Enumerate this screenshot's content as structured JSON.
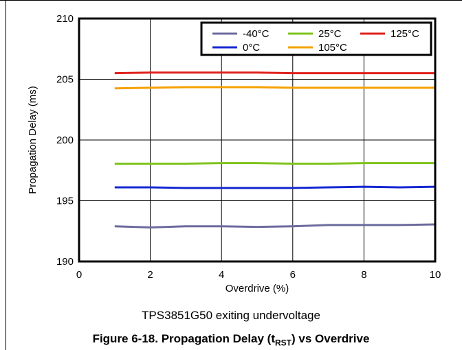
{
  "chart_data": {
    "type": "line",
    "xlabel": "Overdrive (%)",
    "ylabel": "Propagation Delay (ms)",
    "xlim": [
      0,
      10
    ],
    "ylim": [
      190,
      210
    ],
    "xticks": [
      0,
      2,
      4,
      6,
      8,
      10
    ],
    "yticks": [
      190,
      195,
      200,
      205,
      210
    ],
    "grid": true,
    "legend_position": "top-right",
    "x": [
      1,
      2,
      3,
      4,
      5,
      6,
      7,
      8,
      9,
      10
    ],
    "series": [
      {
        "name": "-40°C",
        "color": "#6b6b9e",
        "values": [
          192.9,
          192.8,
          192.9,
          192.9,
          192.85,
          192.9,
          193.0,
          193.0,
          193.0,
          193.05
        ]
      },
      {
        "name": "25°C",
        "color": "#7fc31c",
        "values": [
          198.05,
          198.05,
          198.05,
          198.1,
          198.1,
          198.05,
          198.05,
          198.1,
          198.1,
          198.1
        ]
      },
      {
        "name": "125°C",
        "color": "#e0201b",
        "values": [
          205.5,
          205.55,
          205.55,
          205.55,
          205.55,
          205.5,
          205.5,
          205.5,
          205.5,
          205.5
        ]
      },
      {
        "name": "0°C",
        "color": "#1528d1",
        "values": [
          196.1,
          196.1,
          196.05,
          196.05,
          196.05,
          196.05,
          196.1,
          196.15,
          196.1,
          196.15
        ]
      },
      {
        "name": "105°C",
        "color": "#f5a000",
        "values": [
          204.25,
          204.3,
          204.35,
          204.35,
          204.35,
          204.3,
          204.3,
          204.3,
          204.3,
          204.3
        ]
      }
    ]
  },
  "subcaption": "TPS3851G50 exiting undervoltage",
  "figure_caption": {
    "prefix": "Figure 6-18. Propagation Delay (t",
    "subscript": "RST",
    "suffix": ") vs Overdrive"
  }
}
